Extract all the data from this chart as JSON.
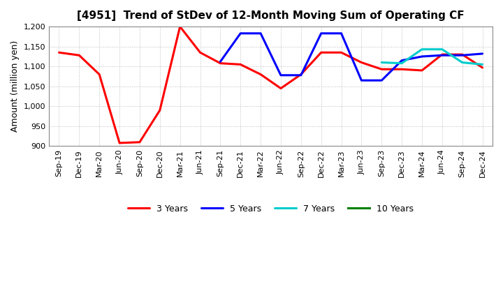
{
  "title": "[4951]  Trend of StDev of 12-Month Moving Sum of Operating CF",
  "ylabel": "Amount (million yen)",
  "background_color": "#ffffff",
  "grid_color": "#aaaaaa",
  "x_labels": [
    "Sep-19",
    "Dec-19",
    "Mar-20",
    "Jun-20",
    "Sep-20",
    "Dec-20",
    "Mar-21",
    "Jun-21",
    "Sep-21",
    "Dec-21",
    "Mar-22",
    "Jun-22",
    "Sep-22",
    "Dec-22",
    "Mar-23",
    "Jun-23",
    "Sep-23",
    "Dec-23",
    "Mar-24",
    "Jun-24",
    "Sep-24",
    "Dec-24"
  ],
  "ylim": [
    900,
    1200
  ],
  "yticks": [
    900,
    950,
    1000,
    1050,
    1100,
    1150,
    1200
  ],
  "series": [
    {
      "name": "3 Years",
      "color": "#ff0000",
      "data_x": [
        0,
        1,
        2,
        3,
        4,
        5,
        6,
        7,
        8,
        9,
        10,
        11,
        12,
        13,
        14,
        15,
        16,
        17,
        18,
        19,
        20,
        21
      ],
      "data_y": [
        1135,
        1128,
        1080,
        908,
        910,
        990,
        1200,
        1135,
        1108,
        1105,
        1080,
        1045,
        1080,
        1135,
        1135,
        1110,
        1093,
        1093,
        1090,
        1130,
        1130,
        1097
      ]
    },
    {
      "name": "5 Years",
      "color": "#0000ff",
      "data_x": [
        8,
        9,
        10,
        11,
        12,
        13,
        14,
        15,
        16,
        17,
        18,
        19,
        20,
        21
      ],
      "data_y": [
        1112,
        1183,
        1183,
        1078,
        1078,
        1183,
        1183,
        1065,
        1065,
        1115,
        1125,
        1128,
        1128,
        1132
      ]
    },
    {
      "name": "7 Years",
      "color": "#00cccc",
      "data_x": [
        16,
        17,
        18,
        19,
        20,
        21
      ],
      "data_y": [
        1110,
        1108,
        1143,
        1143,
        1110,
        1105
      ]
    },
    {
      "name": "10 Years",
      "color": "#008000",
      "data_x": [],
      "data_y": []
    }
  ]
}
